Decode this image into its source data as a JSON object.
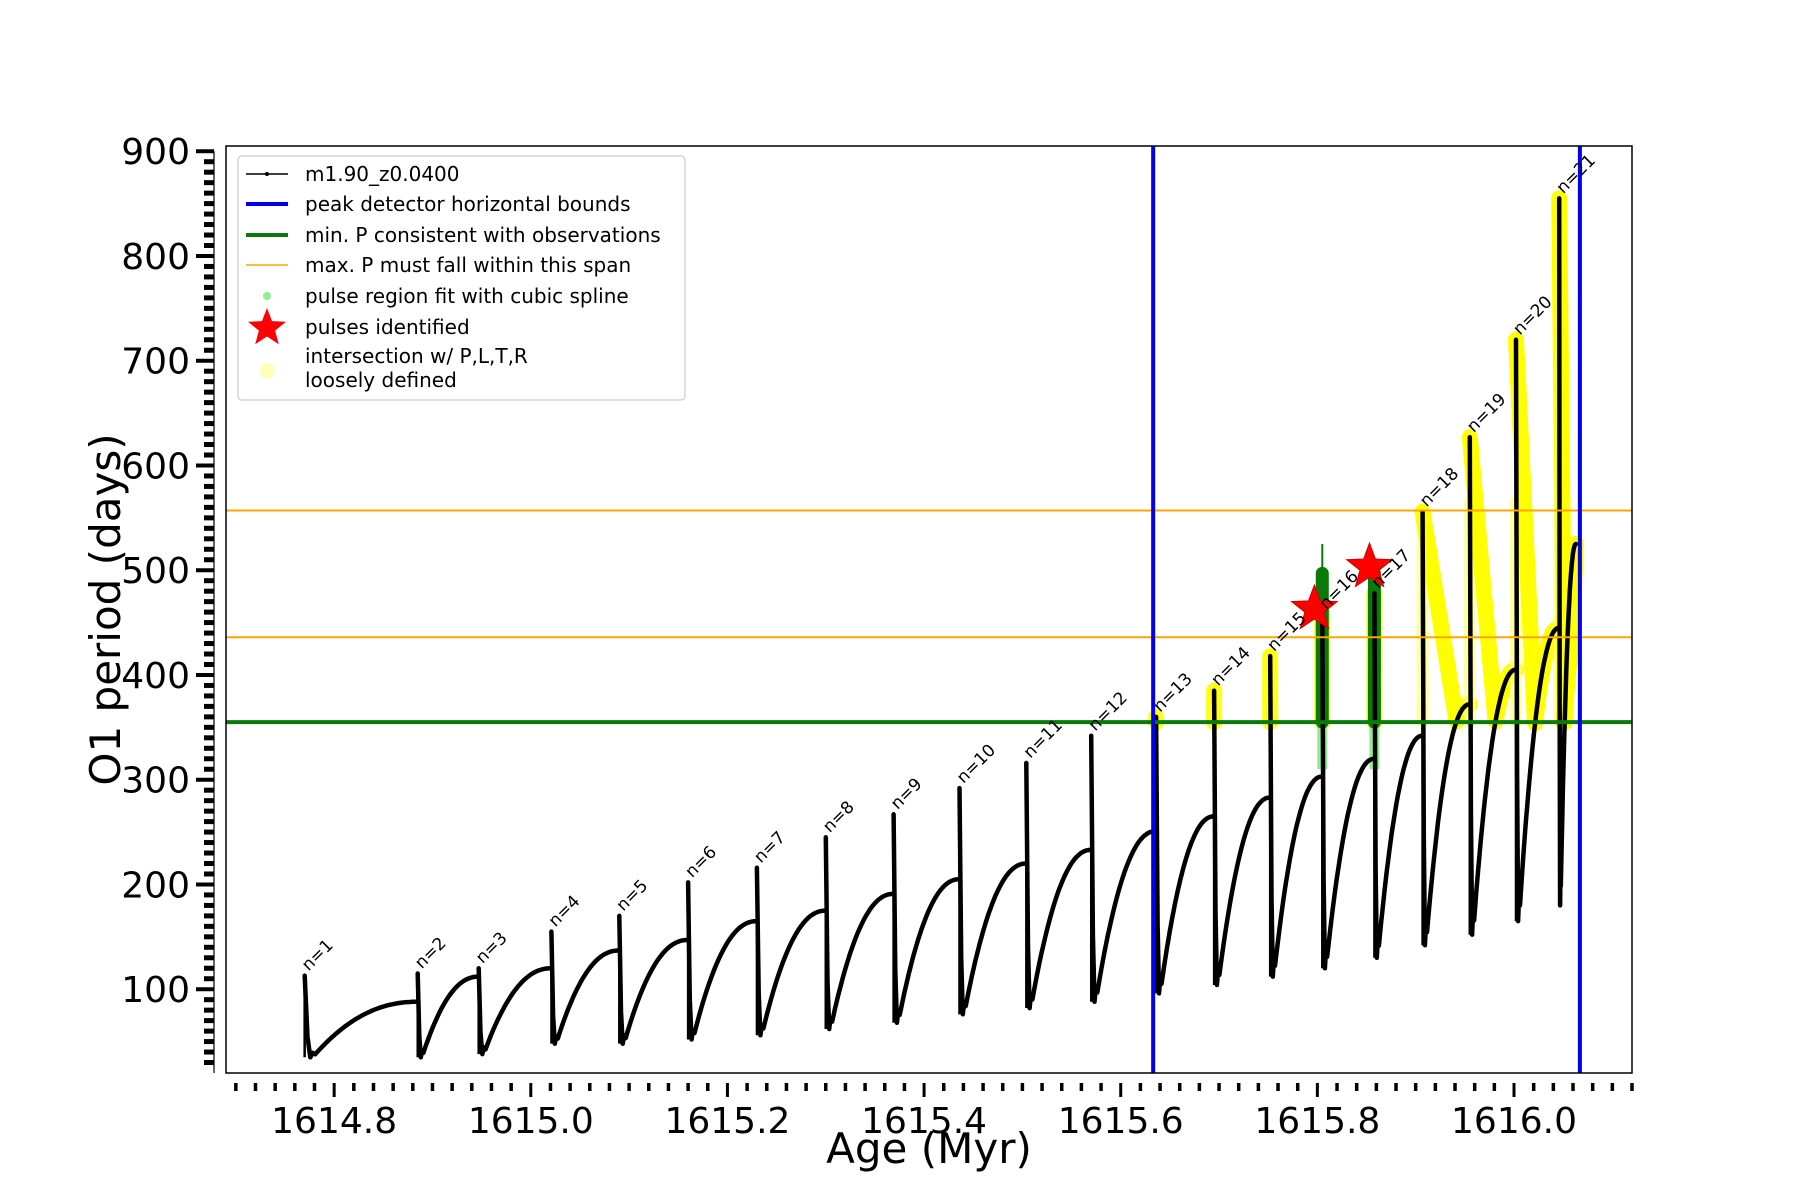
{
  "chart_data": {
    "type": "line",
    "title": "",
    "xlabel": "Age (Myr)",
    "ylabel": "O1 period (days)",
    "xlim": [
      1614.69,
      1616.12
    ],
    "ylim": [
      20,
      905
    ],
    "xticks": [
      1614.8,
      1615.0,
      1615.2,
      1615.4,
      1615.6,
      1615.8,
      1616.0
    ],
    "xtick_labels": [
      "1614.8",
      "1615.0",
      "1615.2",
      "1615.4",
      "1615.6",
      "1615.8",
      "1616.0"
    ],
    "yticks": [
      100,
      200,
      300,
      400,
      500,
      600,
      700,
      800,
      900
    ],
    "ytick_labels": [
      "100",
      "200",
      "300",
      "400",
      "500",
      "600",
      "700",
      "800",
      "900"
    ],
    "grid": false,
    "legend_position": "top-left",
    "legend": [
      {
        "label": "m1.90_z0.0400",
        "kind": "line-dot",
        "color": "#000000"
      },
      {
        "label": "peak detector horizontal bounds",
        "kind": "line",
        "color": "#0000ee"
      },
      {
        "label": "min. P consistent with observations",
        "kind": "line",
        "color": "#0a7a0a"
      },
      {
        "label": "max. P must fall within this span",
        "kind": "thin-line",
        "color": "#ffa500"
      },
      {
        "label": "pulse region fit with cubic spline",
        "kind": "dot",
        "color": "#90ee90"
      },
      {
        "label": "pulses identified",
        "kind": "star",
        "color": "#ff0000"
      },
      {
        "label": "intersection w/ P,L,T,R",
        "label2": "loosely defined",
        "kind": "big-dot",
        "color": "#ffffc0"
      }
    ],
    "vertical_bounds": [
      1615.633,
      1616.067
    ],
    "min_period": 355,
    "max_period_span": [
      436,
      557
    ],
    "pulses": [
      {
        "label": "n=1",
        "age": 1614.77,
        "peak": 113,
        "min": 35,
        "plateau": 88
      },
      {
        "label": "n=2",
        "age": 1614.885,
        "peak": 115,
        "min": 35,
        "plateau": 112
      },
      {
        "label": "n=3",
        "age": 1614.947,
        "peak": 120,
        "min": 38,
        "plateau": 120
      },
      {
        "label": "n=4",
        "age": 1615.021,
        "peak": 155,
        "min": 48,
        "plateau": 137
      },
      {
        "label": "n=5",
        "age": 1615.09,
        "peak": 170,
        "min": 48,
        "plateau": 147
      },
      {
        "label": "n=6",
        "age": 1615.16,
        "peak": 202,
        "min": 52,
        "plateau": 165
      },
      {
        "label": "n=7",
        "age": 1615.23,
        "peak": 216,
        "min": 56,
        "plateau": 175
      },
      {
        "label": "n=8",
        "age": 1615.3,
        "peak": 245,
        "min": 62,
        "plateau": 191
      },
      {
        "label": "n=9",
        "age": 1615.369,
        "peak": 267,
        "min": 68,
        "plateau": 205
      },
      {
        "label": "n=10",
        "age": 1615.436,
        "peak": 292,
        "min": 76,
        "plateau": 220
      },
      {
        "label": "n=11",
        "age": 1615.504,
        "peak": 316,
        "min": 82,
        "plateau": 233
      },
      {
        "label": "n=12",
        "age": 1615.57,
        "peak": 342,
        "min": 88,
        "plateau": 251
      },
      {
        "label": "n=13",
        "age": 1615.636,
        "peak": 360,
        "min": 96,
        "plateau": 265
      },
      {
        "label": "n=14",
        "age": 1615.695,
        "peak": 385,
        "min": 104,
        "plateau": 283
      },
      {
        "label": "n=15",
        "age": 1615.752,
        "peak": 418,
        "min": 112,
        "plateau": 303
      },
      {
        "label": "n=16",
        "age": 1615.805,
        "peak": 458,
        "min": 120,
        "plateau": 320
      },
      {
        "label": "n=17",
        "age": 1615.858,
        "peak": 478,
        "min": 130,
        "plateau": 342
      },
      {
        "label": "n=18",
        "age": 1615.907,
        "peak": 556,
        "min": 142,
        "plateau": 372
      },
      {
        "label": "n=19",
        "age": 1615.955,
        "peak": 627,
        "min": 152,
        "plateau": 405
      },
      {
        "label": "n=20",
        "age": 1616.002,
        "peak": 720,
        "min": 165,
        "plateau": 445
      },
      {
        "label": "n=21",
        "age": 1616.046,
        "peak": 855,
        "min": 180,
        "plateau": 505
      }
    ],
    "final_segment": {
      "x_start": 1616.046,
      "x_end": 1616.063,
      "y_start": 196,
      "y_end": 525
    },
    "stars": [
      {
        "age": 1615.797,
        "period": 463
      },
      {
        "age": 1615.853,
        "period": 503
      }
    ]
  }
}
